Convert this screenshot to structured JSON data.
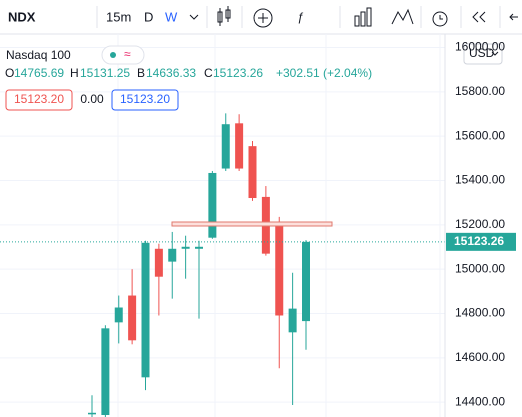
{
  "toolbar": {
    "symbol": "NDX",
    "interval": "15m",
    "day": "D",
    "week": "W"
  },
  "legend": {
    "name": "Nasdaq 100",
    "open_label": "O",
    "high_label": "H",
    "low_label": "B",
    "close_label": "C",
    "change": "+302.51 (+2.04%)"
  },
  "order_panel": {
    "sell": "15123.20",
    "spread": "0.00",
    "buy": "15123.20"
  },
  "currency": "USD",
  "chart_data": {
    "type": "candlestick",
    "categories": [
      null,
      null,
      null,
      null,
      null,
      null,
      null,
      null,
      null,
      null,
      null,
      null,
      null,
      null,
      null,
      null,
      null
    ],
    "open": [
      14345,
      14342,
      14760,
      14881,
      14512,
      15092,
      15034,
      15092,
      15092,
      15142,
      15454,
      15658,
      15555,
      15326,
      15209,
      14715,
      14765.69
    ],
    "high": [
      14431,
      14747,
      14881,
      15000,
      15128,
      15115,
      15168,
      15151,
      15128,
      15443,
      15703,
      15699,
      15578,
      15375,
      15236,
      14984,
      15131.25
    ],
    "low": [
      14330,
      14330,
      14665,
      14661,
      14454,
      14791,
      14867,
      14957,
      14777,
      15137,
      15443,
      15443,
      15308,
      15061,
      14553,
      14387,
      14636.33
    ],
    "close": [
      14352,
      14733,
      14827,
      14679,
      15119,
      14966,
      15092,
      15101,
      15101,
      15434,
      15654,
      15454,
      15321,
      15070,
      14791,
      14822,
      15123.26
    ],
    "up_color": "#26a69a",
    "down_color": "#ef5350",
    "ylim": [
      14333,
      16061
    ],
    "yticks": [
      {
        "value": 14400,
        "label": "14400.00"
      },
      {
        "value": 14600,
        "label": "14600.00"
      },
      {
        "value": 14800,
        "label": "14800.00"
      },
      {
        "value": 15000,
        "label": "15000.00"
      },
      {
        "value": 15200,
        "label": "15200.00"
      },
      {
        "value": 15400,
        "label": "15400.00"
      },
      {
        "value": 15600,
        "label": "15600.00"
      },
      {
        "value": 15800,
        "label": "15800.00"
      },
      {
        "value": 16000,
        "label": "16000.00"
      }
    ],
    "grid": true
  }
}
